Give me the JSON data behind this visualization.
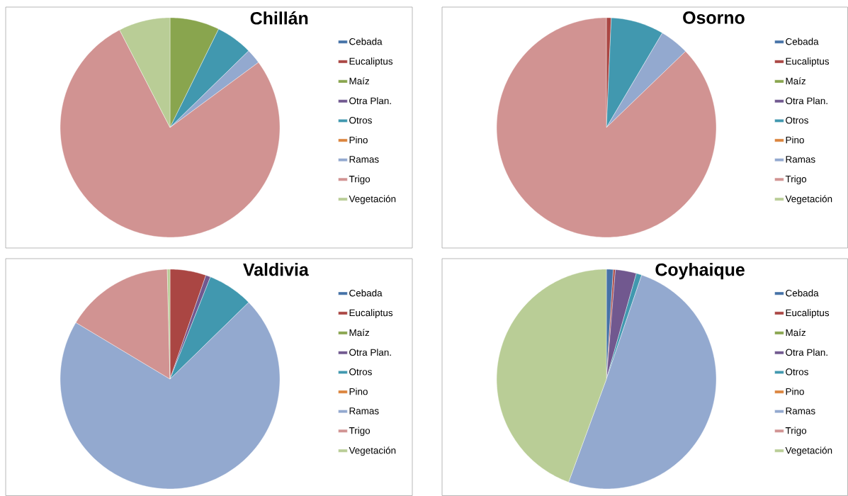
{
  "chart_data": [
    {
      "type": "pie",
      "title": "Chillán",
      "legend": "right",
      "categories": [
        "Cebada",
        "Eucaliptus",
        "Maíz",
        "Otra Plan.",
        "Otros",
        "Pino",
        "Ramas",
        "Trigo",
        "Vegetación"
      ],
      "values": [
        0,
        0,
        7.3,
        0,
        5.4,
        0,
        2.2,
        77.5,
        7.6
      ],
      "colors": [
        "#4572a7",
        "#aa4643",
        "#89a54e",
        "#71588f",
        "#4198af",
        "#db843d",
        "#93a9cf",
        "#d19392",
        "#b9cd96"
      ]
    },
    {
      "type": "pie",
      "title": "Osorno",
      "legend": "right",
      "categories": [
        "Cebada",
        "Eucaliptus",
        "Maíz",
        "Otra Plan.",
        "Otros",
        "Pino",
        "Ramas",
        "Trigo",
        "Vegetación"
      ],
      "values": [
        0,
        0.7,
        0,
        0,
        7.8,
        0,
        4.3,
        87.2,
        0
      ],
      "colors": [
        "#4572a7",
        "#aa4643",
        "#89a54e",
        "#71588f",
        "#4198af",
        "#db843d",
        "#93a9cf",
        "#d19392",
        "#b9cd96"
      ]
    },
    {
      "type": "pie",
      "title": "Valdivia",
      "legend": "right",
      "categories": [
        "Cebada",
        "Eucaliptus",
        "Maíz",
        "Otra Plan.",
        "Otros",
        "Pino",
        "Ramas",
        "Trigo",
        "Vegetación"
      ],
      "values": [
        0,
        5.3,
        0,
        0.7,
        6.7,
        0,
        70.9,
        16.0,
        0.4
      ],
      "colors": [
        "#4572a7",
        "#aa4643",
        "#89a54e",
        "#71588f",
        "#4198af",
        "#db843d",
        "#93a9cf",
        "#d19392",
        "#b9cd96"
      ]
    },
    {
      "type": "pie",
      "title": "Coyhaique",
      "legend": "right",
      "categories": [
        "Cebada",
        "Eucaliptus",
        "Maíz",
        "Otra Plan.",
        "Otros",
        "Pino",
        "Ramas",
        "Trigo",
        "Vegetación"
      ],
      "values": [
        1.0,
        0.3,
        0,
        3.1,
        0.8,
        0,
        50.4,
        0,
        44.4
      ],
      "colors": [
        "#4572a7",
        "#aa4643",
        "#89a54e",
        "#71588f",
        "#4198af",
        "#db843d",
        "#93a9cf",
        "#d19392",
        "#b9cd96"
      ]
    }
  ]
}
